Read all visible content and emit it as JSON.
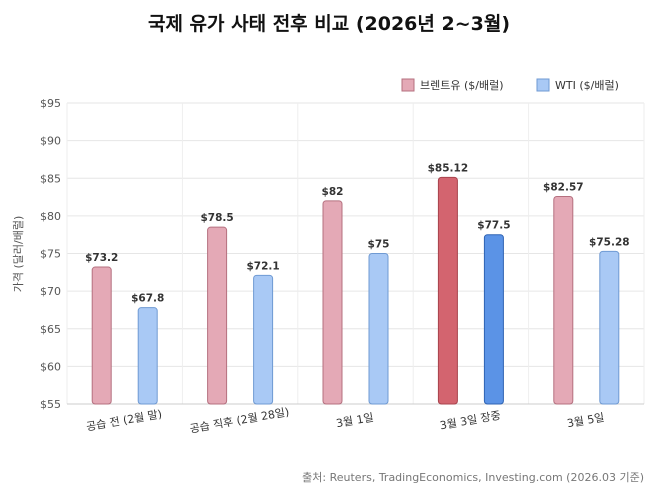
{
  "chart_data": {
    "type": "bar",
    "title": "국제 유가 사태 전후 비교 (2026년 2~3월)",
    "ylabel": "가격 (달러/배럴)",
    "xlabel": "",
    "ylim": [
      55,
      95
    ],
    "yticks": [
      "$55",
      "$60",
      "$65",
      "$70",
      "$75",
      "$80",
      "$85",
      "$90",
      "$95"
    ],
    "ytick_values": [
      55,
      60,
      65,
      70,
      75,
      80,
      85,
      90,
      95
    ],
    "categories": [
      "공습 전 (2월 말)",
      "공습 직후 (2월 28일)",
      "3월 1일",
      "3월 3일 장중",
      "3월 5일"
    ],
    "highlight_index": 3,
    "legend_position": "top-right",
    "grid": true,
    "series": [
      {
        "name": "브렌트유 ($/배럴)",
        "values": [
          73.2,
          78.5,
          82,
          85.12,
          82.57
        ],
        "labels": [
          "$73.2",
          "$78.5",
          "$82",
          "$85.12",
          "$82.57"
        ],
        "color": "#e4a9b6",
        "stroke": "#b5707f",
        "highlight_color": "#d3646f",
        "highlight_stroke": "#a8434d"
      },
      {
        "name": "WTI ($/배럴)",
        "values": [
          67.8,
          72.1,
          75,
          77.5,
          75.28
        ],
        "labels": [
          "$67.8",
          "$72.1",
          "$75",
          "$77.5",
          "$75.28"
        ],
        "color": "#a9c9f5",
        "stroke": "#6f9ad3",
        "highlight_color": "#5b93e6",
        "highlight_stroke": "#2f63b3"
      }
    ],
    "source": "출처: Reuters, TradingEconomics, Investing.com (2026.03 기준)"
  }
}
